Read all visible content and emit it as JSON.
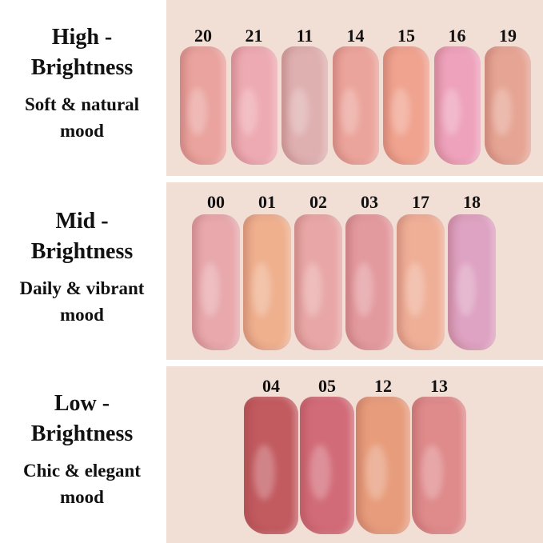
{
  "sections": [
    {
      "title": "High - Brightness",
      "subtitle": "Soft & natural mood",
      "shades": [
        "20",
        "21",
        "11",
        "14",
        "15",
        "16",
        "19"
      ]
    },
    {
      "title": "Mid - Brightness",
      "subtitle": "Daily & vibrant mood",
      "shades": [
        "00",
        "01",
        "02",
        "03",
        "17",
        "18"
      ]
    },
    {
      "title": "Low - Brightness",
      "subtitle": "Chic & elegant mood",
      "shades": [
        "04",
        "05",
        "12",
        "13"
      ]
    }
  ]
}
